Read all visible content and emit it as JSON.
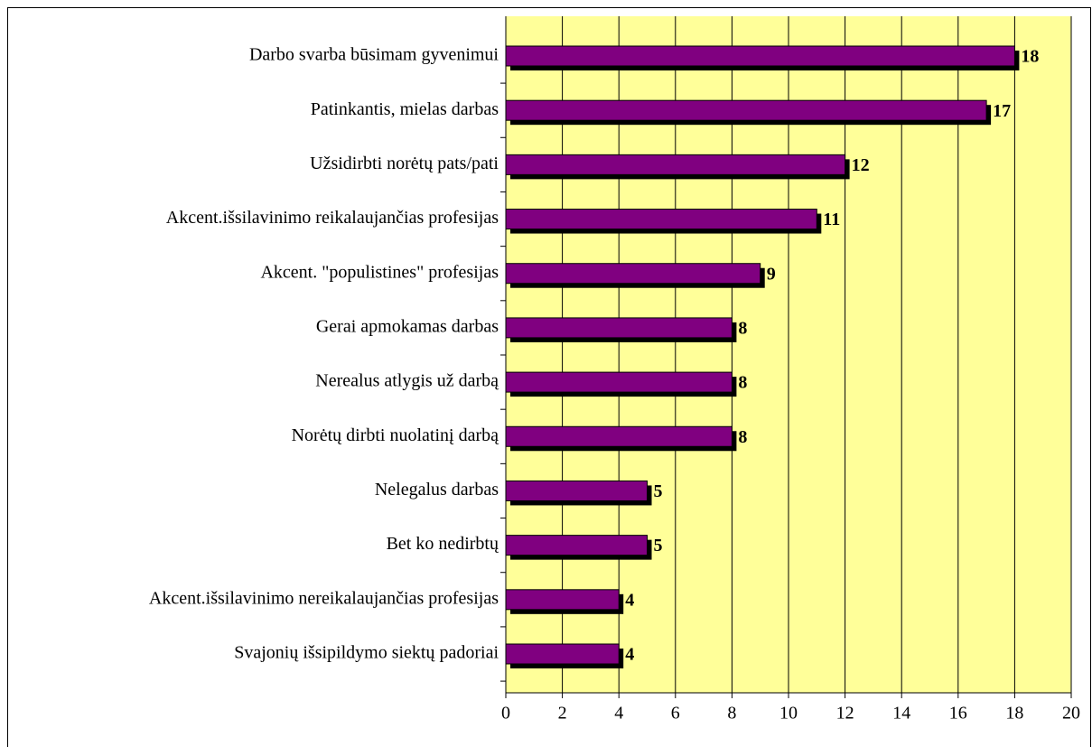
{
  "chart_data": {
    "type": "bar",
    "orientation": "horizontal",
    "categories": [
      "Darbo svarba būsimam gyvenimui",
      "Patinkantis, mielas darbas",
      "Užsidirbti norėtų pats/pati",
      "Akcent.išsilavinimo reikalaujančias profesijas",
      "Akcent. \"populistines\" profesijas",
      "Gerai apmokamas darbas",
      "Nerealus atlygis už darbą",
      "Norėtų dirbti nuolatinį darbą",
      "Nelegalus darbas",
      "Bet ko nedirbtų",
      "Akcent.išsilavinimo nereikalaujančias profesijas",
      "Svajonių išsipildymo siektų padoriai"
    ],
    "values": [
      18,
      17,
      12,
      11,
      9,
      8,
      8,
      8,
      5,
      5,
      4,
      4
    ],
    "color": "#800080",
    "xlim": [
      0,
      20
    ],
    "xticks": [
      0,
      2,
      4,
      6,
      8,
      10,
      12,
      14,
      16,
      18,
      20
    ],
    "grid": true
  }
}
